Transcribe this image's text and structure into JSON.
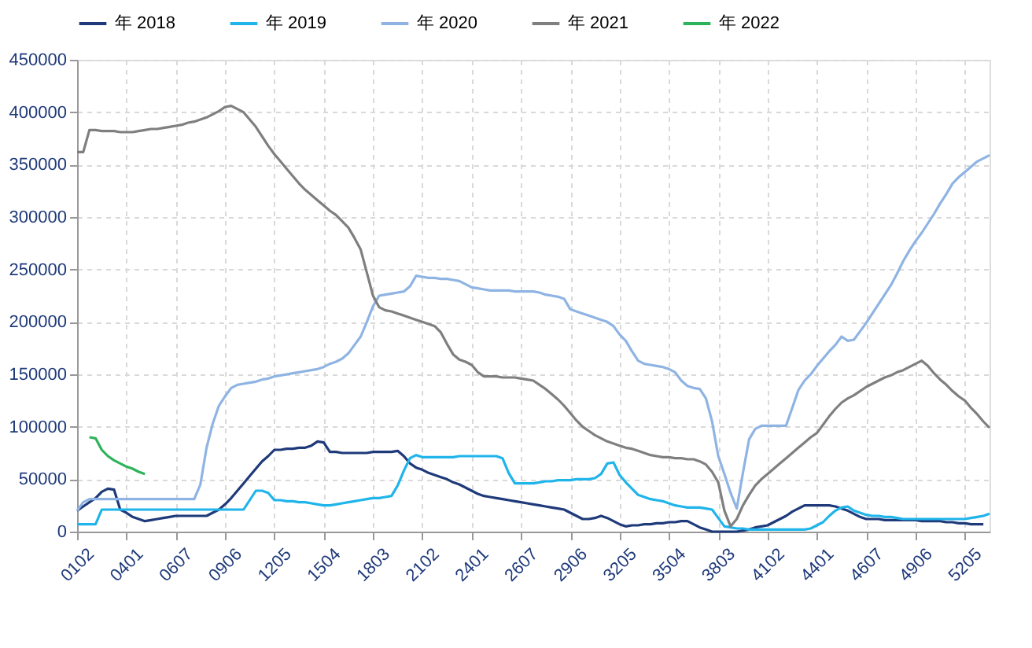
{
  "chart_data": {
    "type": "line",
    "categories": [
      "0102",
      null,
      null,
      null,
      null,
      null,
      null,
      null,
      "0401",
      null,
      null,
      null,
      null,
      null,
      null,
      null,
      "0607",
      null,
      null,
      null,
      null,
      null,
      null,
      null,
      "0906",
      null,
      null,
      null,
      null,
      null,
      null,
      null,
      "1205",
      null,
      null,
      null,
      null,
      null,
      null,
      null,
      "1504",
      null,
      null,
      null,
      null,
      null,
      null,
      null,
      "1803",
      null,
      null,
      null,
      null,
      null,
      null,
      null,
      "2102",
      null,
      null,
      null,
      null,
      null,
      null,
      null,
      "2401",
      null,
      null,
      null,
      null,
      null,
      null,
      null,
      "2607",
      null,
      null,
      null,
      null,
      null,
      null,
      null,
      "2906",
      null,
      null,
      null,
      null,
      null,
      null,
      null,
      "3205",
      null,
      null,
      null,
      null,
      null,
      null,
      null,
      "3504",
      null,
      null,
      null,
      null,
      null,
      null,
      null,
      "3803",
      null,
      null,
      null,
      null,
      null,
      null,
      null,
      "4102",
      null,
      null,
      null,
      null,
      null,
      null,
      null,
      "4401",
      null,
      null,
      null,
      null,
      null,
      null,
      null,
      "4607",
      null,
      null,
      null,
      null,
      null,
      null,
      null,
      "4906",
      null,
      null,
      null,
      null,
      null,
      null,
      null,
      "5205",
      null,
      null,
      null,
      null
    ],
    "ylim": [
      0,
      450000
    ],
    "yticks": [
      0,
      50000,
      100000,
      150000,
      200000,
      250000,
      300000,
      350000,
      400000,
      450000
    ],
    "grid": true,
    "legend": "top",
    "line_style": "solid",
    "marker": "none",
    "series": [
      {
        "name": "年 2018",
        "color": "#1f3a7a",
        "values": [
          20000,
          24000,
          28000,
          32000,
          38000,
          41000,
          40000,
          21000,
          18000,
          14000,
          12000,
          10000,
          11000,
          12000,
          13000,
          14000,
          15000,
          15000,
          15000,
          15000,
          15000,
          15000,
          18000,
          21000,
          26000,
          32000,
          39000,
          46000,
          53000,
          60000,
          67000,
          72000,
          78000,
          78000,
          79000,
          79000,
          80000,
          80000,
          82000,
          86000,
          85000,
          76000,
          76000,
          75000,
          75000,
          75000,
          75000,
          75000,
          76000,
          76000,
          76000,
          76000,
          77000,
          72000,
          65000,
          61000,
          59000,
          56000,
          54000,
          52000,
          50000,
          47000,
          45000,
          42000,
          39000,
          36000,
          34000,
          33000,
          32000,
          31000,
          30000,
          29000,
          28000,
          27000,
          26000,
          25000,
          24000,
          23000,
          22000,
          21000,
          18000,
          15000,
          12000,
          12000,
          13000,
          15000,
          13000,
          10000,
          7000,
          5000,
          6000,
          6000,
          7000,
          7000,
          8000,
          8000,
          9000,
          9000,
          10000,
          10000,
          7000,
          4000,
          2000,
          0,
          0,
          0,
          0,
          0,
          1000,
          2000,
          4000,
          5000,
          6000,
          9000,
          12000,
          15000,
          19000,
          22000,
          25000,
          25000,
          25000,
          25000,
          25000,
          24000,
          22000,
          20000,
          17000,
          14000,
          12000,
          12000,
          12000,
          11000,
          11000,
          11000,
          11000,
          11000,
          11000,
          10000,
          10000,
          10000,
          10000,
          9000,
          9000,
          8000,
          8000,
          7000,
          7000,
          7000,
          null
        ]
      },
      {
        "name": "年 2019",
        "color": "#1fb4ea",
        "values": [
          7000,
          7000,
          7000,
          7000,
          21000,
          21000,
          21000,
          21000,
          21000,
          21000,
          21000,
          21000,
          21000,
          21000,
          21000,
          21000,
          21000,
          21000,
          21000,
          21000,
          21000,
          21000,
          21000,
          21000,
          21000,
          21000,
          21000,
          21000,
          30000,
          39000,
          39000,
          37000,
          30000,
          30000,
          29000,
          29000,
          28000,
          28000,
          27000,
          26000,
          25000,
          25000,
          26000,
          27000,
          28000,
          29000,
          30000,
          31000,
          32000,
          32000,
          33000,
          34000,
          44000,
          58000,
          70000,
          73000,
          71000,
          71000,
          71000,
          71000,
          71000,
          71000,
          72000,
          72000,
          72000,
          72000,
          72000,
          72000,
          72000,
          70000,
          56000,
          46000,
          46000,
          46000,
          46000,
          47000,
          48000,
          48000,
          49000,
          49000,
          49000,
          50000,
          50000,
          50000,
          51000,
          55000,
          65000,
          66000,
          54000,
          47000,
          41000,
          35000,
          33000,
          31000,
          30000,
          29000,
          27000,
          25000,
          24000,
          23000,
          23000,
          23000,
          22000,
          21000,
          13000,
          5000,
          4000,
          3000,
          3000,
          2000,
          2000,
          2000,
          2000,
          2000,
          2000,
          2000,
          2000,
          2000,
          2000,
          3000,
          6000,
          9000,
          15000,
          20000,
          23000,
          24000,
          20000,
          18000,
          16000,
          15000,
          15000,
          14000,
          14000,
          13000,
          12000,
          12000,
          12000,
          12000,
          12000,
          12000,
          12000,
          12000,
          12000,
          12000,
          12000,
          13000,
          14000,
          15000,
          17000
        ]
      },
      {
        "name": "年 2020",
        "color": "#8fb4e3",
        "values": [
          20000,
          28000,
          31000,
          31000,
          31000,
          31000,
          31000,
          31000,
          31000,
          31000,
          31000,
          31000,
          31000,
          31000,
          31000,
          31000,
          31000,
          31000,
          31000,
          31000,
          45000,
          80000,
          103000,
          120000,
          129000,
          137000,
          140000,
          141000,
          142000,
          143000,
          145000,
          146000,
          148000,
          149000,
          150000,
          151000,
          152000,
          153000,
          154000,
          155000,
          157000,
          160000,
          162000,
          165000,
          170000,
          178000,
          186000,
          200000,
          215000,
          225000,
          226000,
          227000,
          228000,
          229000,
          234000,
          244000,
          243000,
          242000,
          242000,
          241000,
          241000,
          240000,
          239000,
          236000,
          233000,
          232000,
          231000,
          230000,
          230000,
          230000,
          230000,
          229000,
          229000,
          229000,
          229000,
          228000,
          226000,
          225000,
          224000,
          222000,
          212000,
          210000,
          208000,
          206000,
          204000,
          202000,
          200000,
          196000,
          188000,
          182000,
          172000,
          163000,
          160000,
          159000,
          158000,
          157000,
          155000,
          152000,
          144000,
          139000,
          137000,
          136000,
          127000,
          105000,
          72000,
          55000,
          37000,
          22000,
          56000,
          88000,
          98000,
          101000,
          101000,
          101000,
          101000,
          101000,
          118000,
          135000,
          144000,
          150000,
          158000,
          165000,
          172000,
          178000,
          186000,
          182000,
          183000,
          191000,
          199000,
          208000,
          217000,
          226000,
          235000,
          246000,
          258000,
          268000,
          277000,
          285000,
          294000,
          303000,
          313000,
          322000,
          332000,
          338000,
          343000,
          348000,
          353000,
          356000,
          359000
        ]
      },
      {
        "name": "年 2021",
        "color": "#7f7f7f",
        "values": [
          362000,
          362000,
          383000,
          383000,
          382000,
          382000,
          382000,
          381000,
          381000,
          381000,
          382000,
          383000,
          384000,
          384000,
          385000,
          386000,
          387000,
          388000,
          390000,
          391000,
          393000,
          395000,
          398000,
          401000,
          405000,
          406000,
          403000,
          400000,
          393000,
          386000,
          377000,
          368000,
          360000,
          353000,
          346000,
          339000,
          332000,
          326000,
          321000,
          316000,
          311000,
          306000,
          302000,
          296000,
          290000,
          280000,
          269000,
          247000,
          225000,
          214000,
          211000,
          210000,
          208000,
          206000,
          204000,
          202000,
          200000,
          198000,
          196000,
          190000,
          179000,
          169000,
          164000,
          162000,
          159000,
          152000,
          148000,
          148000,
          148000,
          147000,
          147000,
          147000,
          146000,
          145000,
          144000,
          140000,
          136000,
          131000,
          126000,
          120000,
          113000,
          106000,
          100000,
          96000,
          92000,
          89000,
          86000,
          84000,
          82000,
          80000,
          79000,
          77000,
          75000,
          73000,
          72000,
          71000,
          71000,
          70000,
          70000,
          69000,
          69000,
          67000,
          64000,
          57000,
          47000,
          20000,
          5000,
          12000,
          25000,
          35000,
          44000,
          50000,
          55000,
          60000,
          65000,
          70000,
          75000,
          80000,
          85000,
          90000,
          94000,
          102000,
          110000,
          117000,
          123000,
          127000,
          130000,
          134000,
          138000,
          141000,
          144000,
          147000,
          149000,
          152000,
          154000,
          157000,
          160000,
          163000,
          158000,
          151000,
          145000,
          140000,
          134000,
          129000,
          125000,
          118000,
          112000,
          105000,
          99000
        ]
      },
      {
        "name": "年 2022",
        "color": "#2db35a",
        "values": [
          null,
          null,
          90000,
          89000,
          78000,
          72000,
          68000,
          65000,
          62000,
          60000,
          57000,
          55000,
          null,
          null,
          null,
          null,
          null,
          null,
          null,
          null,
          null,
          null,
          null,
          null,
          null,
          null,
          null,
          null,
          null,
          null,
          null,
          null,
          null,
          null,
          null,
          null,
          null,
          null,
          null,
          null,
          null,
          null,
          null,
          null,
          null,
          null,
          null,
          null,
          null,
          null,
          null,
          null,
          null,
          null,
          null,
          null,
          null,
          null,
          null,
          null,
          null,
          null,
          null,
          null,
          null,
          null,
          null,
          null,
          null,
          null,
          null,
          null,
          null,
          null,
          null,
          null,
          null,
          null,
          null,
          null,
          null,
          null,
          null,
          null,
          null,
          null,
          null,
          null,
          null,
          null,
          null,
          null,
          null,
          null,
          null,
          null,
          null,
          null,
          null,
          null,
          null,
          null,
          null,
          null,
          null,
          null,
          null,
          null,
          null,
          null,
          null,
          null,
          null,
          null,
          null,
          null,
          null,
          null,
          null,
          null,
          null,
          null,
          null,
          null,
          null,
          null,
          null,
          null,
          null,
          null,
          null,
          null,
          null,
          null,
          null,
          null,
          null,
          null,
          null,
          null,
          null,
          null,
          null,
          null,
          null,
          null,
          null,
          null,
          null
        ]
      }
    ]
  }
}
